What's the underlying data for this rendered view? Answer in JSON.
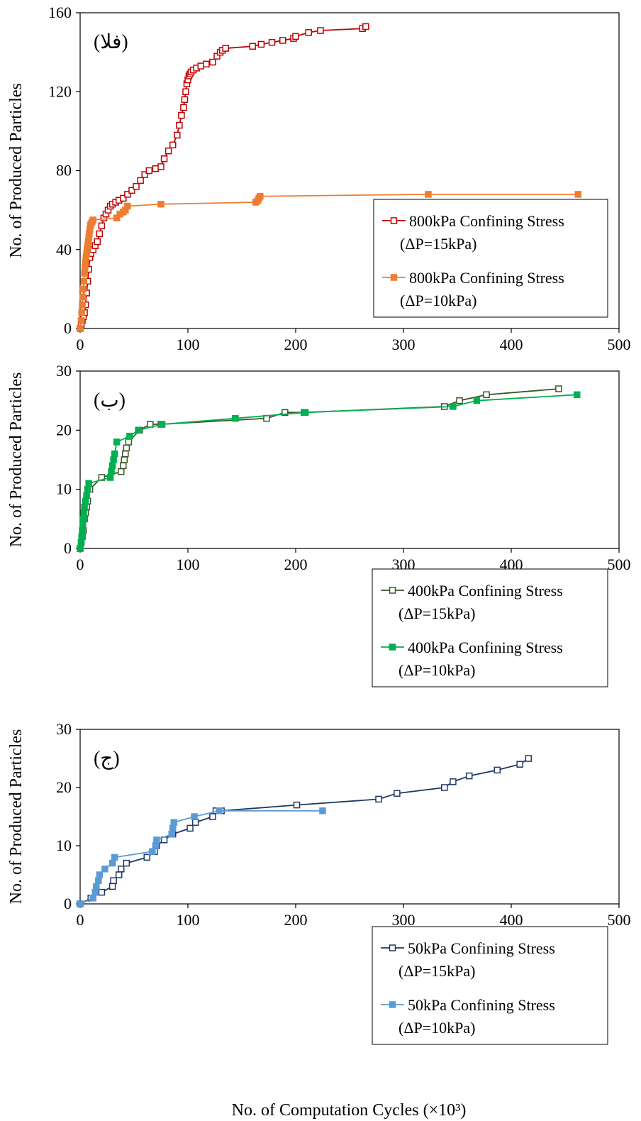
{
  "figure": {
    "xlabel": "No. of Computation Cycles (×10³)"
  },
  "chart_data": [
    {
      "type": "line",
      "panel_label": "(الف)",
      "ylabel": "No. of Produced Particles",
      "xlim": [
        0,
        500
      ],
      "ylim": [
        0,
        160
      ],
      "xticks": [
        0,
        100,
        200,
        300,
        400,
        500
      ],
      "yticks": [
        0,
        40,
        80,
        120,
        160
      ],
      "legend_position": "bottom-right",
      "grid": false,
      "series": [
        {
          "name": "800kPa Confining Stress",
          "name_line2": "(ΔP=15kPa)",
          "color": "#C00000",
          "marker": "square-open",
          "x": [
            0,
            1,
            2,
            3,
            4,
            5,
            6,
            7,
            8,
            9,
            10,
            12,
            14,
            16,
            18,
            20,
            22,
            24,
            26,
            28,
            30,
            33,
            36,
            40,
            44,
            48,
            52,
            56,
            60,
            64,
            70,
            75,
            78,
            82,
            86,
            90,
            92,
            94,
            96,
            97,
            98,
            99,
            100,
            101,
            102,
            103,
            105,
            108,
            112,
            117,
            123,
            127,
            130,
            132,
            135,
            160,
            168,
            178,
            188,
            198,
            200,
            212,
            223,
            262,
            265
          ],
          "y": [
            0,
            2,
            4,
            6,
            8,
            12,
            18,
            24,
            30,
            36,
            38,
            40,
            42,
            44,
            48,
            52,
            56,
            58,
            60,
            62,
            63,
            64,
            65,
            66,
            68,
            70,
            72,
            75,
            78,
            80,
            81,
            82,
            86,
            90,
            93,
            98,
            103,
            108,
            112,
            116,
            120,
            124,
            126,
            128,
            129,
            130,
            131,
            132,
            133,
            134,
            135,
            138,
            140,
            141,
            142,
            143,
            144,
            145,
            146,
            147,
            148,
            150,
            151,
            152,
            153
          ]
        },
        {
          "name": "800kPa Confining Stress",
          "name_line2": "(ΔP=10kPa)",
          "color": "#ED7D31",
          "marker": "square-filled",
          "x": [
            0,
            1,
            1.5,
            2,
            2.5,
            3,
            3.5,
            4,
            4.5,
            5,
            5.5,
            6,
            6.5,
            7,
            7.5,
            8,
            8.5,
            9,
            9.5,
            10,
            11,
            12,
            34,
            37,
            40,
            42,
            44,
            75,
            163,
            165,
            166,
            167,
            323,
            462
          ],
          "y": [
            0,
            4,
            8,
            12,
            16,
            20,
            24,
            28,
            31,
            34,
            36,
            38,
            40,
            42,
            44,
            46,
            48,
            50,
            52,
            53,
            54,
            55,
            56,
            58,
            59,
            60,
            62,
            63,
            64,
            65,
            66,
            67,
            68,
            68
          ]
        }
      ]
    },
    {
      "type": "line",
      "panel_label": "(ب)",
      "ylabel": "No. of Produced Particles",
      "xlim": [
        0,
        500
      ],
      "ylim": [
        0,
        30
      ],
      "xticks": [
        0,
        100,
        200,
        300,
        400,
        500
      ],
      "yticks": [
        0,
        10,
        20,
        30
      ],
      "legend_position": "bottom-right",
      "grid": false,
      "series": [
        {
          "name": "400kPa Confining Stress",
          "name_line2": "(ΔP=15kPa)",
          "color": "#375623",
          "marker": "square-open",
          "x": [
            0,
            1,
            2,
            3,
            4,
            5,
            6,
            7,
            9,
            20,
            38,
            40,
            41,
            42,
            43,
            45,
            55,
            65,
            75,
            173,
            190,
            208,
            338,
            352,
            377,
            444
          ],
          "y": [
            0,
            1,
            2,
            3,
            5,
            6,
            7,
            8,
            10,
            12,
            13,
            14,
            15,
            16,
            17,
            18,
            20,
            21,
            21,
            22,
            23,
            23,
            24,
            25,
            26,
            27
          ]
        },
        {
          "name": "400kPa Confining Stress",
          "name_line2": "(ΔP=10kPa)",
          "color": "#00B050",
          "marker": "square-filled",
          "x": [
            0,
            1,
            1.5,
            2,
            2.5,
            3,
            3.5,
            4,
            5,
            6,
            7,
            8,
            28,
            29,
            30,
            31,
            32,
            34,
            46,
            54,
            76,
            144,
            209,
            346,
            368,
            461
          ],
          "y": [
            0,
            1,
            2,
            3,
            4,
            5,
            6,
            7,
            8,
            9,
            10,
            11,
            12,
            13,
            14,
            15,
            16,
            18,
            19,
            20,
            21,
            22,
            23,
            24,
            25,
            26
          ]
        }
      ]
    },
    {
      "type": "line",
      "panel_label": "(ج)",
      "ylabel": "No. of Produced Particles",
      "xlim": [
        0,
        500
      ],
      "ylim": [
        0,
        30
      ],
      "xticks": [
        0,
        100,
        200,
        300,
        400,
        500
      ],
      "yticks": [
        0,
        10,
        20,
        30
      ],
      "legend_position": "bottom-right",
      "grid": false,
      "series": [
        {
          "name": "50kPa Confining Stress",
          "name_line2": "(ΔP=15kPa)",
          "color": "#1F3864",
          "marker": "square-open",
          "x": [
            0,
            10,
            20,
            30,
            31,
            36,
            38,
            43,
            62,
            69,
            71,
            78,
            86,
            102,
            107,
            123,
            126,
            131,
            201,
            277,
            294,
            338,
            346,
            361,
            387,
            408,
            416
          ],
          "y": [
            0,
            1,
            2,
            3,
            4,
            5,
            6,
            7,
            8,
            9,
            10,
            11,
            12,
            13,
            14,
            15,
            16,
            16,
            17,
            18,
            19,
            20,
            21,
            22,
            23,
            24,
            25
          ]
        },
        {
          "name": "50kPa Confining Stress",
          "name_line2": "(ΔP=10kPa)",
          "color": "#5B9BD5",
          "marker": "square-filled",
          "x": [
            0,
            12,
            14,
            15,
            17,
            18,
            23,
            30,
            32,
            67,
            70,
            71,
            85,
            86,
            87,
            106,
            129,
            225
          ],
          "y": [
            0,
            1,
            2,
            3,
            4,
            5,
            6,
            7,
            8,
            9,
            10,
            11,
            12,
            13,
            14,
            15,
            16,
            16
          ]
        }
      ]
    }
  ]
}
